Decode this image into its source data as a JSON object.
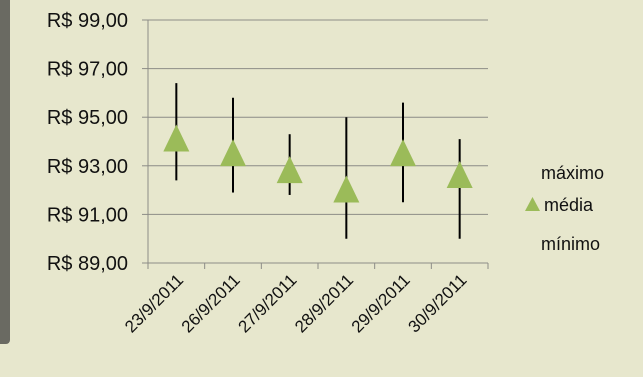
{
  "chart_data": {
    "type": "stock",
    "categories": [
      "23/9/2011",
      "26/9/2011",
      "27/9/2011",
      "28/9/2011",
      "29/9/2011",
      "30/9/2011"
    ],
    "series": [
      {
        "name": "máximo",
        "values": [
          96.4,
          95.8,
          94.3,
          95.0,
          95.6,
          94.1
        ]
      },
      {
        "name": "média",
        "values": [
          94.0,
          93.4,
          92.7,
          91.9,
          93.4,
          92.5
        ]
      },
      {
        "name": "mínimo",
        "values": [
          92.4,
          91.9,
          91.8,
          90.0,
          91.5,
          90.0
        ]
      }
    ],
    "y_ticks": [
      "R$ 99,00",
      "R$ 97,00",
      "R$ 95,00",
      "R$ 93,00",
      "R$ 91,00",
      "R$ 89,00"
    ],
    "ylim": [
      89,
      99
    ],
    "grid": true,
    "legend": "right",
    "colors": {
      "marker": "#9bbb59",
      "line": "#000000",
      "grid": "#8c8c86"
    }
  }
}
